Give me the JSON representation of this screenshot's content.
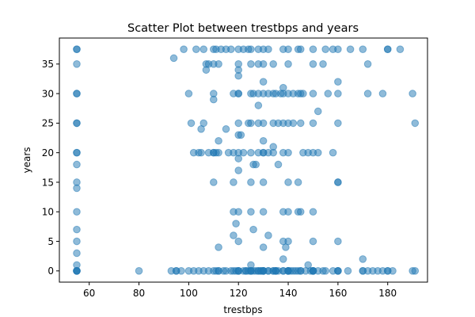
{
  "chart_data": {
    "type": "scatter",
    "title": "Scatter Plot between trestbps and years",
    "xlabel": "trestbps",
    "ylabel": "years",
    "xlim": [
      48,
      196
    ],
    "ylim": [
      -1.9,
      39.4
    ],
    "xticks": [
      60,
      80,
      100,
      120,
      140,
      160,
      180
    ],
    "yticks": [
      0,
      5,
      10,
      15,
      20,
      25,
      30,
      35
    ],
    "grid": false,
    "legend": "none",
    "marker_color": "#1f77b4",
    "marker_alpha": 0.5,
    "points": [
      [
        55,
        0
      ],
      [
        55,
        0
      ],
      [
        55,
        0
      ],
      [
        55,
        0
      ],
      [
        55,
        1
      ],
      [
        55,
        3
      ],
      [
        55,
        5
      ],
      [
        55,
        7
      ],
      [
        55,
        10
      ],
      [
        55,
        14
      ],
      [
        55,
        15
      ],
      [
        55,
        18
      ],
      [
        55,
        20
      ],
      [
        55,
        20
      ],
      [
        55,
        25
      ],
      [
        55,
        25
      ],
      [
        55,
        30
      ],
      [
        55,
        30
      ],
      [
        55,
        35
      ],
      [
        55,
        37.5
      ],
      [
        55,
        37.5
      ],
      [
        80,
        0
      ],
      [
        93,
        0
      ],
      [
        94,
        36
      ],
      [
        95,
        0
      ],
      [
        95,
        0
      ],
      [
        97,
        0
      ],
      [
        98,
        37.5
      ],
      [
        100,
        0
      ],
      [
        100,
        30
      ],
      [
        101,
        25
      ],
      [
        102,
        0
      ],
      [
        102,
        20
      ],
      [
        103,
        37.5
      ],
      [
        104,
        0
      ],
      [
        104,
        20
      ],
      [
        105,
        20
      ],
      [
        105,
        24
      ],
      [
        106,
        0
      ],
      [
        106,
        25
      ],
      [
        106,
        37.5
      ],
      [
        107,
        34
      ],
      [
        107,
        35
      ],
      [
        108,
        0
      ],
      [
        108,
        20
      ],
      [
        108,
        35
      ],
      [
        110,
        0
      ],
      [
        110,
        15
      ],
      [
        110,
        20
      ],
      [
        110,
        20
      ],
      [
        110,
        29
      ],
      [
        110,
        30
      ],
      [
        110,
        35
      ],
      [
        110,
        37.5
      ],
      [
        111,
        0
      ],
      [
        111,
        20
      ],
      [
        111,
        37.5
      ],
      [
        112,
        0
      ],
      [
        112,
        0
      ],
      [
        112,
        4
      ],
      [
        112,
        20
      ],
      [
        112,
        22
      ],
      [
        112,
        35
      ],
      [
        113,
        37.5
      ],
      [
        114,
        0
      ],
      [
        115,
        0
      ],
      [
        115,
        24
      ],
      [
        115,
        37.5
      ],
      [
        116,
        20
      ],
      [
        117,
        0
      ],
      [
        117,
        37.5
      ],
      [
        118,
        0
      ],
      [
        118,
        6
      ],
      [
        118,
        10
      ],
      [
        118,
        15
      ],
      [
        118,
        20
      ],
      [
        118,
        30
      ],
      [
        119,
        0
      ],
      [
        119,
        8
      ],
      [
        120,
        0
      ],
      [
        120,
        0
      ],
      [
        120,
        0
      ],
      [
        120,
        5
      ],
      [
        120,
        10
      ],
      [
        120,
        17
      ],
      [
        120,
        19
      ],
      [
        120,
        20
      ],
      [
        120,
        23
      ],
      [
        120,
        25
      ],
      [
        120,
        30
      ],
      [
        120,
        30
      ],
      [
        120,
        33
      ],
      [
        120,
        34
      ],
      [
        120,
        35
      ],
      [
        120,
        37.5
      ],
      [
        121,
        23
      ],
      [
        122,
        0
      ],
      [
        122,
        20
      ],
      [
        122,
        37.5
      ],
      [
        123,
        0
      ],
      [
        123,
        0
      ],
      [
        124,
        0
      ],
      [
        124,
        25
      ],
      [
        124,
        37.5
      ],
      [
        125,
        0
      ],
      [
        125,
        0
      ],
      [
        125,
        0
      ],
      [
        125,
        1
      ],
      [
        125,
        10
      ],
      [
        125,
        15
      ],
      [
        125,
        20
      ],
      [
        125,
        25
      ],
      [
        125,
        30
      ],
      [
        125,
        35
      ],
      [
        125,
        37.5
      ],
      [
        126,
        0
      ],
      [
        126,
        7
      ],
      [
        126,
        18
      ],
      [
        126,
        30
      ],
      [
        127,
        0
      ],
      [
        127,
        18
      ],
      [
        128,
        0
      ],
      [
        128,
        0
      ],
      [
        128,
        20
      ],
      [
        128,
        25
      ],
      [
        128,
        28
      ],
      [
        128,
        30
      ],
      [
        128,
        35
      ],
      [
        128,
        37.5
      ],
      [
        129,
        0
      ],
      [
        129,
        0
      ],
      [
        130,
        0
      ],
      [
        130,
        0
      ],
      [
        130,
        0
      ],
      [
        130,
        0
      ],
      [
        130,
        4
      ],
      [
        130,
        10
      ],
      [
        130,
        15
      ],
      [
        130,
        20
      ],
      [
        130,
        20
      ],
      [
        130,
        22
      ],
      [
        130,
        25
      ],
      [
        130,
        30
      ],
      [
        130,
        32
      ],
      [
        130,
        35
      ],
      [
        130,
        37.5
      ],
      [
        132,
        0
      ],
      [
        132,
        0
      ],
      [
        132,
        6
      ],
      [
        132,
        20
      ],
      [
        132,
        30
      ],
      [
        132,
        37.5
      ],
      [
        134,
        0
      ],
      [
        134,
        0
      ],
      [
        134,
        20
      ],
      [
        134,
        21
      ],
      [
        134,
        25
      ],
      [
        134,
        30
      ],
      [
        134,
        35
      ],
      [
        135,
        0
      ],
      [
        135,
        0
      ],
      [
        135,
        0
      ],
      [
        135,
        30
      ],
      [
        136,
        0
      ],
      [
        136,
        18
      ],
      [
        136,
        25
      ],
      [
        137,
        30
      ],
      [
        138,
        0
      ],
      [
        138,
        0
      ],
      [
        138,
        2
      ],
      [
        138,
        5
      ],
      [
        138,
        10
      ],
      [
        138,
        20
      ],
      [
        138,
        25
      ],
      [
        138,
        30
      ],
      [
        138,
        31
      ],
      [
        138,
        37.5
      ],
      [
        139,
        4
      ],
      [
        140,
        0
      ],
      [
        140,
        0
      ],
      [
        140,
        0
      ],
      [
        140,
        0
      ],
      [
        140,
        5
      ],
      [
        140,
        10
      ],
      [
        140,
        15
      ],
      [
        140,
        20
      ],
      [
        140,
        25
      ],
      [
        140,
        30
      ],
      [
        140,
        35
      ],
      [
        140,
        37.5
      ],
      [
        141,
        0
      ],
      [
        142,
        0
      ],
      [
        142,
        25
      ],
      [
        142,
        30
      ],
      [
        143,
        0
      ],
      [
        144,
        0
      ],
      [
        144,
        10
      ],
      [
        144,
        15
      ],
      [
        144,
        30
      ],
      [
        144,
        37.5
      ],
      [
        145,
        0
      ],
      [
        145,
        0
      ],
      [
        145,
        10
      ],
      [
        145,
        25
      ],
      [
        145,
        30
      ],
      [
        145,
        37.5
      ],
      [
        146,
        20
      ],
      [
        146,
        30
      ],
      [
        147,
        0
      ],
      [
        148,
        1
      ],
      [
        148,
        20
      ],
      [
        149,
        0
      ],
      [
        150,
        0
      ],
      [
        150,
        0
      ],
      [
        150,
        0
      ],
      [
        150,
        0
      ],
      [
        150,
        5
      ],
      [
        150,
        10
      ],
      [
        150,
        20
      ],
      [
        150,
        25
      ],
      [
        150,
        30
      ],
      [
        150,
        35
      ],
      [
        150,
        37.5
      ],
      [
        152,
        0
      ],
      [
        152,
        20
      ],
      [
        152,
        27
      ],
      [
        154,
        0
      ],
      [
        154,
        35
      ],
      [
        155,
        0
      ],
      [
        155,
        37.5
      ],
      [
        156,
        30
      ],
      [
        158,
        0
      ],
      [
        158,
        20
      ],
      [
        158,
        37.5
      ],
      [
        160,
        0
      ],
      [
        160,
        0
      ],
      [
        160,
        0
      ],
      [
        160,
        5
      ],
      [
        160,
        15
      ],
      [
        160,
        15
      ],
      [
        160,
        25
      ],
      [
        160,
        30
      ],
      [
        160,
        32
      ],
      [
        160,
        37.5
      ],
      [
        164,
        0
      ],
      [
        165,
        37.5
      ],
      [
        170,
        0
      ],
      [
        170,
        0
      ],
      [
        170,
        2
      ],
      [
        170,
        37.5
      ],
      [
        172,
        0
      ],
      [
        172,
        30
      ],
      [
        172,
        35
      ],
      [
        174,
        0
      ],
      [
        176,
        0
      ],
      [
        178,
        0
      ],
      [
        178,
        30
      ],
      [
        180,
        0
      ],
      [
        180,
        0
      ],
      [
        180,
        37.5
      ],
      [
        180,
        37.5
      ],
      [
        182,
        0
      ],
      [
        185,
        37.5
      ],
      [
        190,
        0
      ],
      [
        190,
        30
      ],
      [
        191,
        0
      ],
      [
        191,
        25
      ]
    ]
  }
}
